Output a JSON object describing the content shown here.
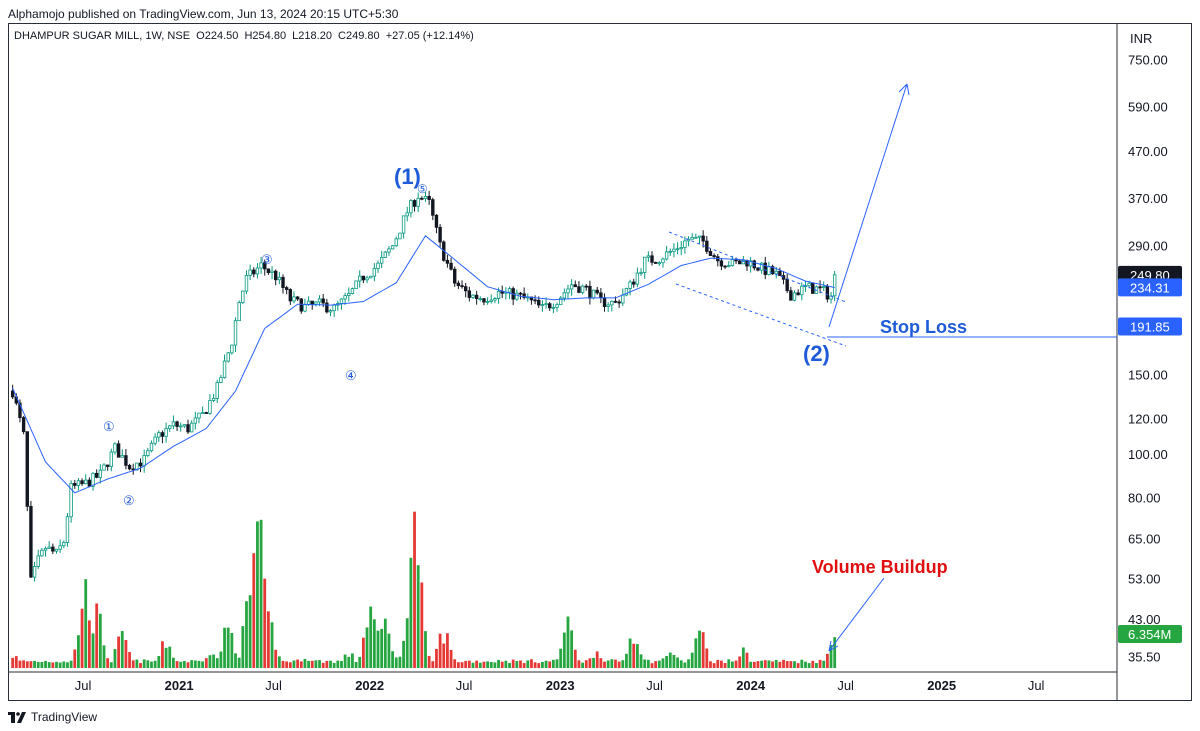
{
  "header": {
    "published": "Alphamojo published on TradingView.com, Jun 13, 2024 20:15 UTC+5:30"
  },
  "legend": {
    "symbol": "DHAMPUR SUGAR MILL, 1W, NSE",
    "ohlc": "O224.50  H254.80  L218.20  C249.80  +27.05 (+12.14%)"
  },
  "footer": {
    "brand": "TradingView"
  },
  "colors": {
    "up": "#089981",
    "down": "#131722",
    "vol_up": "#26a641",
    "vol_down": "#e53935",
    "ma": "#2962ff",
    "annotation": "#1e5bd8",
    "volume_text": "#e01010"
  },
  "chart_data": {
    "type": "candlestick",
    "currency": "INR",
    "y_scale": "log",
    "ylim": [
      33,
      900
    ],
    "y_ticks": [
      "750.00",
      "590.00",
      "470.00",
      "370.00",
      "290.00",
      "150.00",
      "120.00",
      "100.00",
      "80.00",
      "65.00",
      "53.00",
      "43.00",
      "35.50"
    ],
    "y_tick_values": [
      750,
      590,
      470,
      370,
      290,
      150,
      120,
      100,
      80,
      65,
      53,
      43,
      35.5
    ],
    "x_ticks": [
      {
        "label": "Jul",
        "date": "2020-07-01",
        "bold": false
      },
      {
        "label": "2021",
        "date": "2021-01-01",
        "bold": true
      },
      {
        "label": "Jul",
        "date": "2021-07-01",
        "bold": false
      },
      {
        "label": "2022",
        "date": "2022-01-01",
        "bold": true
      },
      {
        "label": "Jul",
        "date": "2022-07-01",
        "bold": false
      },
      {
        "label": "2023",
        "date": "2023-01-01",
        "bold": true
      },
      {
        "label": "Jul",
        "date": "2023-07-01",
        "bold": false
      },
      {
        "label": "2024",
        "date": "2024-01-01",
        "bold": true
      },
      {
        "label": "Jul",
        "date": "2024-07-01",
        "bold": false
      },
      {
        "label": "2025",
        "date": "2025-01-01",
        "bold": true
      },
      {
        "label": "Jul",
        "date": "2025-07-01",
        "bold": false
      }
    ],
    "x_range": [
      "2020-02-10",
      "2025-12-01"
    ],
    "price_path": [
      [
        "2020-02-17",
        138
      ],
      [
        "2020-03-09",
        110
      ],
      [
        "2020-03-23",
        52
      ],
      [
        "2020-04-06",
        58
      ],
      [
        "2020-04-20",
        62
      ],
      [
        "2020-05-11",
        60
      ],
      [
        "2020-05-25",
        64
      ],
      [
        "2020-06-08",
        84
      ],
      [
        "2020-07-06",
        86
      ],
      [
        "2020-08-03",
        90
      ],
      [
        "2020-08-31",
        103
      ],
      [
        "2020-09-28",
        94
      ],
      [
        "2020-10-26",
        97
      ],
      [
        "2020-11-23",
        110
      ],
      [
        "2020-12-21",
        116
      ],
      [
        "2021-01-18",
        114
      ],
      [
        "2021-02-15",
        122
      ],
      [
        "2021-03-15",
        140
      ],
      [
        "2021-04-12",
        178
      ],
      [
        "2021-04-26",
        218
      ],
      [
        "2021-05-10",
        245
      ],
      [
        "2021-06-07",
        262
      ],
      [
        "2021-07-05",
        248
      ],
      [
        "2021-08-02",
        220
      ],
      [
        "2021-08-30",
        212
      ],
      [
        "2021-09-27",
        215
      ],
      [
        "2021-10-25",
        210
      ],
      [
        "2021-11-22",
        224
      ],
      [
        "2021-12-20",
        248
      ],
      [
        "2022-01-17",
        262
      ],
      [
        "2022-02-14",
        290
      ],
      [
        "2022-03-14",
        345
      ],
      [
        "2022-04-04",
        375
      ],
      [
        "2022-04-25",
        360
      ],
      [
        "2022-05-16",
        290
      ],
      [
        "2022-06-13",
        240
      ],
      [
        "2022-07-11",
        225
      ],
      [
        "2022-08-08",
        222
      ],
      [
        "2022-09-05",
        228
      ],
      [
        "2022-10-03",
        226
      ],
      [
        "2022-10-31",
        220
      ],
      [
        "2022-11-28",
        210
      ],
      [
        "2022-12-26",
        220
      ],
      [
        "2023-01-23",
        238
      ],
      [
        "2023-02-20",
        232
      ],
      [
        "2023-03-20",
        218
      ],
      [
        "2023-04-17",
        216
      ],
      [
        "2023-05-15",
        236
      ],
      [
        "2023-06-12",
        268
      ],
      [
        "2023-07-10",
        272
      ],
      [
        "2023-08-07",
        284
      ],
      [
        "2023-09-04",
        300
      ],
      [
        "2023-10-02",
        296
      ],
      [
        "2023-10-30",
        270
      ],
      [
        "2023-11-27",
        264
      ],
      [
        "2023-12-25",
        268
      ],
      [
        "2024-01-22",
        258
      ],
      [
        "2024-02-19",
        250
      ],
      [
        "2024-03-18",
        226
      ],
      [
        "2024-04-15",
        234
      ],
      [
        "2024-05-13",
        232
      ],
      [
        "2024-06-03",
        224
      ],
      [
        "2024-06-10",
        250
      ]
    ],
    "ma_path": [
      [
        "2020-02-17",
        140
      ],
      [
        "2020-04-20",
        96
      ],
      [
        "2020-06-15",
        82
      ],
      [
        "2020-08-17",
        88
      ],
      [
        "2020-10-19",
        93
      ],
      [
        "2020-12-21",
        104
      ],
      [
        "2021-02-22",
        114
      ],
      [
        "2021-04-19",
        138
      ],
      [
        "2021-06-14",
        190
      ],
      [
        "2021-08-16",
        215
      ],
      [
        "2021-10-18",
        214
      ],
      [
        "2021-12-20",
        218
      ],
      [
        "2022-02-21",
        240
      ],
      [
        "2022-04-18",
        305
      ],
      [
        "2022-06-13",
        270
      ],
      [
        "2022-08-15",
        235
      ],
      [
        "2022-10-17",
        224
      ],
      [
        "2022-12-19",
        220
      ],
      [
        "2023-02-20",
        222
      ],
      [
        "2023-04-17",
        222
      ],
      [
        "2023-06-19",
        238
      ],
      [
        "2023-08-21",
        262
      ],
      [
        "2023-10-16",
        272
      ],
      [
        "2023-12-18",
        270
      ],
      [
        "2024-02-19",
        258
      ],
      [
        "2024-04-15",
        242
      ],
      [
        "2024-06-10",
        234
      ]
    ],
    "series_levels": [
      {
        "name": "close",
        "value": 249.8,
        "label": "249.80",
        "bg": "#131722"
      },
      {
        "name": "ma",
        "value": 234.31,
        "label": "234.31",
        "bg": "#2962ff"
      },
      {
        "name": "stop_loss",
        "value": 191.85,
        "label": "191.85",
        "bg": "#2962ff"
      }
    ],
    "volume_tag": {
      "label": "6.354M",
      "bg": "#26a641"
    },
    "volume_peaks": [
      [
        "2020-02-17",
        0.09
      ],
      [
        "2020-07-06",
        0.55
      ],
      [
        "2020-07-27",
        0.38
      ],
      [
        "2020-09-14",
        0.22
      ],
      [
        "2020-12-07",
        0.18
      ],
      [
        "2021-03-01",
        0.12
      ],
      [
        "2021-04-05",
        0.28
      ],
      [
        "2021-05-17",
        0.48
      ],
      [
        "2021-05-31",
        1.0
      ],
      [
        "2021-06-21",
        0.34
      ],
      [
        "2021-08-30",
        0.08
      ],
      [
        "2021-11-22",
        0.1
      ],
      [
        "2022-01-03",
        0.42
      ],
      [
        "2022-01-31",
        0.32
      ],
      [
        "2022-03-28",
        1.0
      ],
      [
        "2022-05-23",
        0.25
      ],
      [
        "2022-09-12",
        0.06
      ],
      [
        "2023-01-16",
        0.3
      ],
      [
        "2023-03-13",
        0.12
      ],
      [
        "2023-05-22",
        0.25
      ],
      [
        "2023-07-31",
        0.12
      ],
      [
        "2023-09-25",
        0.25
      ],
      [
        "2023-12-18",
        0.12
      ],
      [
        "2024-02-05",
        0.06
      ],
      [
        "2024-06-10",
        0.2
      ]
    ],
    "annotations": {
      "wave1": "(1)",
      "wave2": "(2)",
      "sub1": "①",
      "sub2": "②",
      "sub3": "③",
      "sub4": "④",
      "sub5": "⑤",
      "stop_loss": "Stop Loss",
      "volume_buildup": "Volume Buildup"
    }
  }
}
